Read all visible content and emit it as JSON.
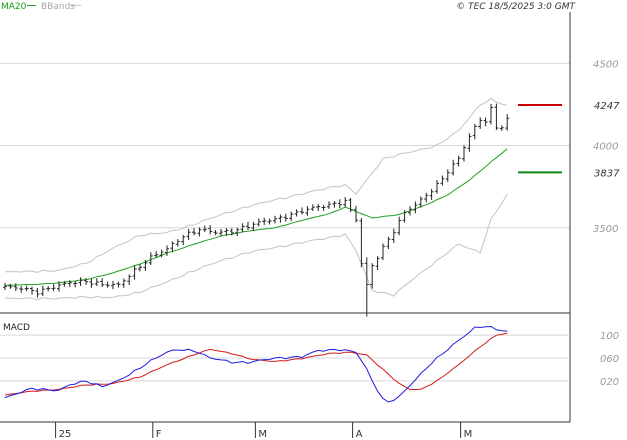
{
  "header": {
    "legend_ma": "MA20",
    "legend_bb": "BBands",
    "copyright": "© TEC 18/5/2025 3:0 GMT"
  },
  "colors": {
    "ma": "#22a022",
    "bbands": "#c4c4c4",
    "price": "#222222",
    "macd_line": "#1c1ce0",
    "signal_line": "#d41c1c",
    "resistance": "#cc0000",
    "support": "#118811",
    "grid": "#d8d8d8"
  },
  "chart_data": [
    {
      "type": "line",
      "panel": "price",
      "legend": [
        "MA20",
        "BBands"
      ],
      "y_ticks": [
        {
          "value": 3500,
          "label": "3500"
        },
        {
          "value": 4000,
          "label": "4000"
        },
        {
          "value": 4500,
          "label": "4500"
        }
      ],
      "ylim": [
        3000,
        4800
      ],
      "levels": [
        {
          "value": 4247,
          "label": "4247",
          "kind": "resistance"
        },
        {
          "value": 3837,
          "label": "3837",
          "kind": "support"
        }
      ],
      "x_labels": [
        "25",
        "F",
        "M",
        "A",
        "M"
      ],
      "x_label_index": [
        9,
        27,
        46,
        64,
        84
      ],
      "n_bars": 100,
      "series": [
        {
          "name": "MA20",
          "anchors": [
            [
              0,
              3150
            ],
            [
              5,
              3155
            ],
            [
              10,
              3165
            ],
            [
              15,
              3185
            ],
            [
              20,
              3225
            ],
            [
              25,
              3280
            ],
            [
              30,
              3345
            ],
            [
              35,
              3400
            ],
            [
              40,
              3450
            ],
            [
              45,
              3480
            ],
            [
              50,
              3500
            ],
            [
              55,
              3545
            ],
            [
              60,
              3585
            ],
            [
              63,
              3625
            ],
            [
              68,
              3560
            ],
            [
              73,
              3580
            ],
            [
              78,
              3640
            ],
            [
              82,
              3700
            ],
            [
              86,
              3790
            ],
            [
              90,
              3900
            ],
            [
              93,
              3980
            ]
          ]
        },
        {
          "name": "BBands upper",
          "anchors": [
            [
              0,
              3230
            ],
            [
              5,
              3235
            ],
            [
              10,
              3240
            ],
            [
              15,
              3285
            ],
            [
              20,
              3375
            ],
            [
              25,
              3455
            ],
            [
              30,
              3470
            ],
            [
              35,
              3520
            ],
            [
              40,
              3580
            ],
            [
              45,
              3630
            ],
            [
              50,
              3670
            ],
            [
              55,
              3705
            ],
            [
              60,
              3745
            ],
            [
              63,
              3760
            ],
            [
              65,
              3705
            ],
            [
              70,
              3920
            ],
            [
              75,
              3960
            ],
            [
              80,
              4000
            ],
            [
              84,
              4090
            ],
            [
              88,
              4250
            ],
            [
              90,
              4280
            ],
            [
              93,
              4240
            ]
          ]
        },
        {
          "name": "BBands lower",
          "anchors": [
            [
              0,
              3070
            ],
            [
              5,
              3070
            ],
            [
              10,
              3070
            ],
            [
              15,
              3080
            ],
            [
              20,
              3075
            ],
            [
              25,
              3110
            ],
            [
              30,
              3170
            ],
            [
              35,
              3240
            ],
            [
              40,
              3300
            ],
            [
              45,
              3350
            ],
            [
              50,
              3380
            ],
            [
              55,
              3410
            ],
            [
              60,
              3440
            ],
            [
              63,
              3460
            ],
            [
              65,
              3360
            ],
            [
              68,
              3120
            ],
            [
              72,
              3090
            ],
            [
              76,
              3200
            ],
            [
              80,
              3300
            ],
            [
              84,
              3400
            ],
            [
              88,
              3350
            ],
            [
              90,
              3550
            ],
            [
              93,
              3700
            ]
          ]
        }
      ],
      "ohlc_anchors": [
        [
          0,
          3140
        ],
        [
          3,
          3130
        ],
        [
          6,
          3110
        ],
        [
          9,
          3140
        ],
        [
          12,
          3165
        ],
        [
          15,
          3175
        ],
        [
          18,
          3155
        ],
        [
          21,
          3150
        ],
        [
          24,
          3240
        ],
        [
          27,
          3320
        ],
        [
          30,
          3370
        ],
        [
          33,
          3450
        ],
        [
          36,
          3490
        ],
        [
          39,
          3470
        ],
        [
          42,
          3480
        ],
        [
          45,
          3510
        ],
        [
          48,
          3540
        ],
        [
          51,
          3560
        ],
        [
          54,
          3590
        ],
        [
          57,
          3620
        ],
        [
          60,
          3640
        ],
        [
          63,
          3660
        ],
        [
          65,
          3550
        ],
        [
          66,
          3280
        ],
        [
          67,
          3150
        ],
        [
          68,
          3270
        ],
        [
          70,
          3380
        ],
        [
          72,
          3480
        ],
        [
          74,
          3590
        ],
        [
          76,
          3640
        ],
        [
          78,
          3700
        ],
        [
          80,
          3760
        ],
        [
          82,
          3840
        ],
        [
          84,
          3920
        ],
        [
          86,
          4060
        ],
        [
          88,
          4160
        ],
        [
          89,
          4150
        ],
        [
          90,
          4220
        ],
        [
          91,
          4110
        ],
        [
          92,
          4110
        ],
        [
          93,
          4160
        ]
      ]
    },
    {
      "type": "line",
      "panel": "macd",
      "title": "MACD",
      "y_ticks": [
        {
          "value": 100,
          "label": "100"
        },
        {
          "value": 60,
          "label": "060"
        },
        {
          "value": 20,
          "label": "020"
        }
      ],
      "ylim": [
        -45,
        130
      ],
      "series": [
        {
          "name": "MACD",
          "anchors": [
            [
              0,
              -10
            ],
            [
              5,
              7
            ],
            [
              10,
              3
            ],
            [
              12,
              13
            ],
            [
              15,
              20
            ],
            [
              18,
              10
            ],
            [
              21,
              20
            ],
            [
              24,
              37
            ],
            [
              27,
              55
            ],
            [
              30,
              70
            ],
            [
              32,
              75
            ],
            [
              35,
              73
            ],
            [
              38,
              60
            ],
            [
              42,
              53
            ],
            [
              45,
              52
            ],
            [
              50,
              60
            ],
            [
              55,
              62
            ],
            [
              58,
              73
            ],
            [
              62,
              75
            ],
            [
              65,
              70
            ],
            [
              67,
              40
            ],
            [
              68,
              20
            ],
            [
              70,
              -12
            ],
            [
              71,
              -17
            ],
            [
              73,
              -8
            ],
            [
              76,
              22
            ],
            [
              79,
              52
            ],
            [
              82,
              75
            ],
            [
              85,
              98
            ],
            [
              87,
              113
            ],
            [
              89,
              116
            ],
            [
              91,
              110
            ],
            [
              93,
              106
            ]
          ]
        },
        {
          "name": "Signal",
          "anchors": [
            [
              0,
              -5
            ],
            [
              5,
              2
            ],
            [
              10,
              5
            ],
            [
              15,
              13
            ],
            [
              20,
              15
            ],
            [
              25,
              27
            ],
            [
              30,
              48
            ],
            [
              35,
              66
            ],
            [
              38,
              75
            ],
            [
              42,
              68
            ],
            [
              46,
              57
            ],
            [
              50,
              54
            ],
            [
              55,
              59
            ],
            [
              60,
              68
            ],
            [
              64,
              70
            ],
            [
              67,
              65
            ],
            [
              70,
              40
            ],
            [
              73,
              15
            ],
            [
              75,
              5
            ],
            [
              77,
              5
            ],
            [
              80,
              20
            ],
            [
              84,
              48
            ],
            [
              88,
              80
            ],
            [
              91,
              100
            ],
            [
              93,
              103
            ]
          ]
        }
      ]
    }
  ]
}
